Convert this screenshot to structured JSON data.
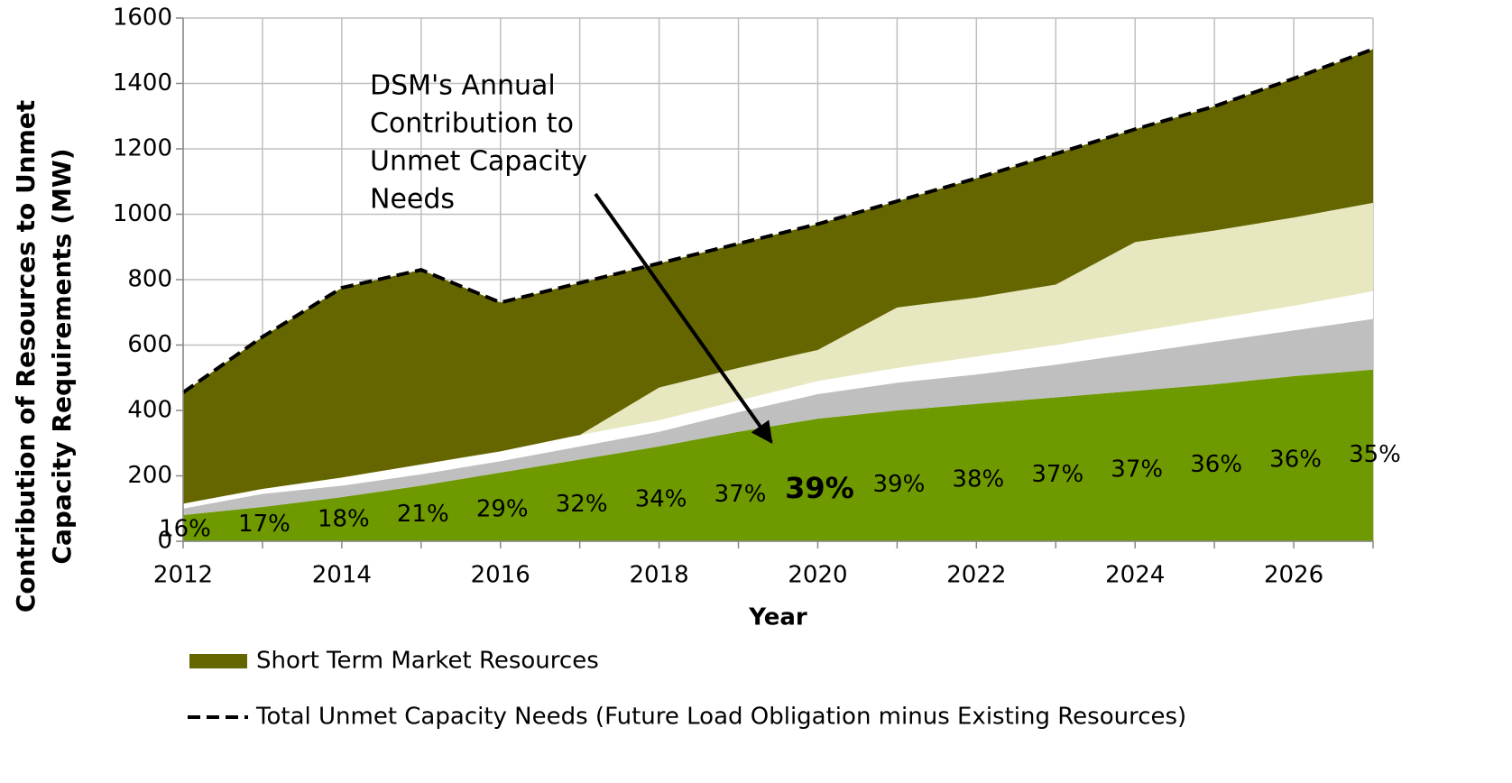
{
  "chart_data": {
    "type": "area",
    "stacked": true,
    "ylabel": [
      "Contribution of Resources to Unmet",
      "Capacity Requirements (MW)"
    ],
    "xlabel": "Year",
    "x": [
      2012,
      2013,
      2014,
      2015,
      2016,
      2017,
      2018,
      2019,
      2020,
      2021,
      2022,
      2023,
      2024,
      2025,
      2026,
      2027
    ],
    "xlim": [
      2012,
      2027
    ],
    "xticks": [
      2012,
      2014,
      2016,
      2018,
      2020,
      2022,
      2024,
      2026
    ],
    "ylim": [
      0,
      1600
    ],
    "yticks": [
      0,
      200,
      400,
      600,
      800,
      1000,
      1200,
      1400,
      1600
    ],
    "grid": true,
    "legend": "bottom-left",
    "series": [
      {
        "type": "area",
        "color": "#6e9a00",
        "values": [
          80,
          105,
          135,
          170,
          210,
          250,
          290,
          335,
          375,
          400,
          420,
          440,
          460,
          480,
          505,
          525
        ]
      },
      {
        "type": "area",
        "color": "#bfbfbf",
        "values": [
          20,
          40,
          35,
          35,
          35,
          40,
          45,
          60,
          75,
          85,
          90,
          100,
          115,
          130,
          140,
          155
        ]
      },
      {
        "type": "area",
        "color": "#ffffff",
        "values": [
          15,
          15,
          25,
          30,
          30,
          35,
          35,
          35,
          40,
          45,
          55,
          60,
          65,
          70,
          75,
          85
        ]
      },
      {
        "type": "area",
        "color": "#e8e8c0",
        "values": [
          0,
          0,
          0,
          0,
          0,
          0,
          100,
          100,
          95,
          185,
          180,
          185,
          275,
          270,
          270,
          270
        ]
      },
      {
        "type": "area",
        "name": "Short Term Market Resources",
        "color": "#666600",
        "values": [
          340,
          465,
          580,
          595,
          455,
          465,
          380,
          380,
          385,
          325,
          365,
          400,
          345,
          380,
          425,
          470
        ]
      },
      {
        "type": "line",
        "name": "Total Unmet Capacity Needs (Future Load Obligation minus Existing Resources)",
        "color": "#000000",
        "dashed": true,
        "values": [
          455,
          625,
          775,
          830,
          730,
          790,
          850,
          910,
          970,
          1040,
          1110,
          1185,
          1260,
          1330,
          1415,
          1505
        ]
      }
    ],
    "dsm_share": {
      "values": [
        16,
        17,
        18,
        21,
        29,
        32,
        34,
        37,
        39,
        39,
        38,
        37,
        37,
        36,
        36,
        35
      ],
      "value_labels": [
        "16%",
        "17%",
        "18%",
        "21%",
        "29%",
        "32%",
        "34%",
        "37%",
        "39%",
        "39%",
        "38%",
        "37%",
        "37%",
        "36%",
        "36%",
        "35%"
      ]
    },
    "annotation": [
      "DSM's Annual",
      "Contribution to",
      "Unmet Capacity",
      "Needs"
    ]
  }
}
